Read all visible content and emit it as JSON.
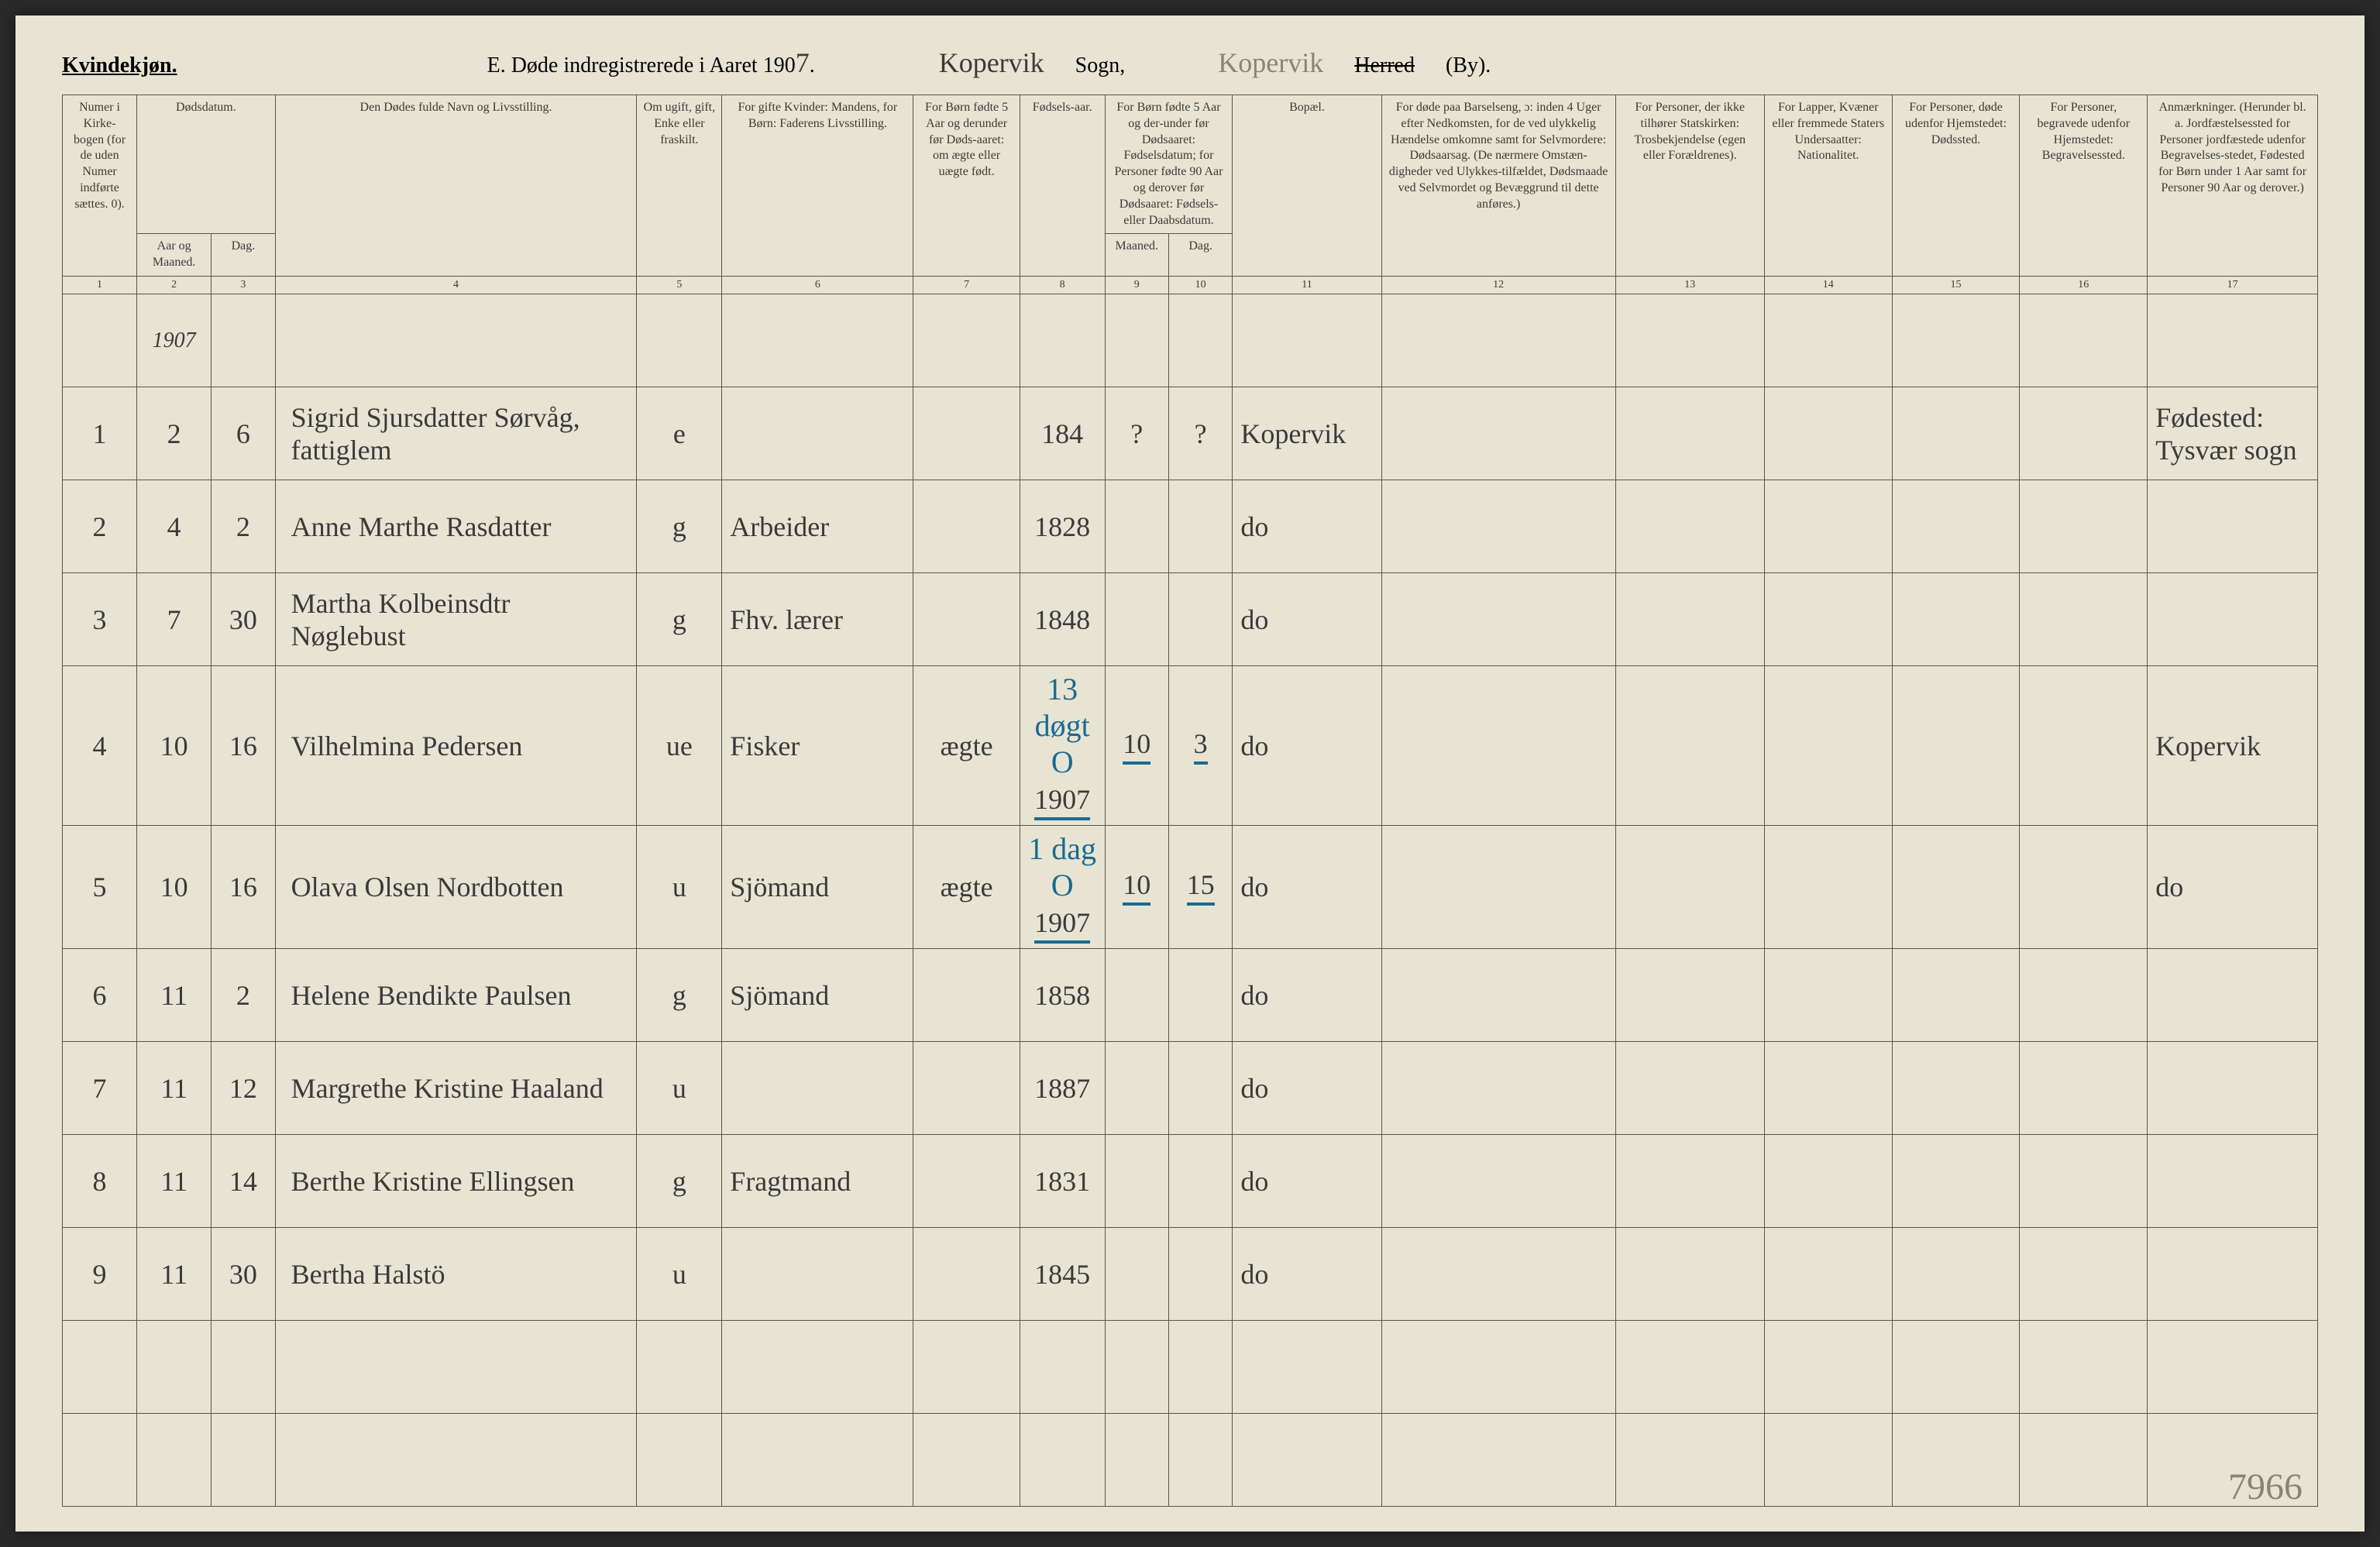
{
  "header": {
    "gender_label": "Kvindekjøn.",
    "title_prefix": "E.  Døde indregistrerede i Aaret 190",
    "year_suffix": "7",
    "title_suffix": ".",
    "parish_value": "Kopervik",
    "parish_label": "Sogn,",
    "district_value": "Kopervik",
    "herred_label": "Herred",
    "by_label": "(By)."
  },
  "columns": {
    "c1": "Numer i Kirke-bogen (for de uden Numer indførte sættes. 0).",
    "c2": "Dødsdatum.",
    "c2a": "Aar og Maaned.",
    "c2b": "Dag.",
    "c4": "Den Dødes fulde Navn og Livsstilling.",
    "c5": "Om ugift, gift, Enke eller fraskilt.",
    "c6": "For gifte Kvinder: Mandens, for Børn: Faderens Livsstilling.",
    "c7": "For Børn fødte 5 Aar og derunder før Døds-aaret: om ægte eller uægte født.",
    "c8": "Fødsels-aar.",
    "c9": "For Børn fødte 5 Aar og der-under før Dødsaaret: Fødselsdatum; for Personer fødte 90 Aar og derover før Dødsaaret: Fødsels- eller Daabsdatum.",
    "c9a": "Maaned.",
    "c9b": "Dag.",
    "c11": "Bopæl.",
    "c12": "For døde paa Barselseng, ɔ: inden 4 Uger efter Nedkomsten, for de ved ulykkelig Hændelse omkomne samt for Selvmordere: Dødsaarsag. (De nærmere Omstæn-digheder ved Ulykkes-tilfældet, Dødsmaade ved Selvmordet og Bevæggrund til dette anføres.)",
    "c13": "For Personer, der ikke tilhører Statskirken: Trosbekjendelse (egen eller Forældrenes).",
    "c14": "For Lapper, Kvæner eller fremmede Staters Undersaatter: Nationalitet.",
    "c15": "For Personer, døde udenfor Hjemstedet: Dødssted.",
    "c16": "For Personer, begravede udenfor Hjemstedet: Begravelsessted.",
    "c17": "Anmærkninger. (Herunder bl. a. Jordfæstelsessted for Personer jordfæstede udenfor Begravelses-stedet, Fødested for Børn under 1 Aar samt for Personer 90 Aar og derover.)"
  },
  "colnums": [
    "1",
    "2",
    "3",
    "4",
    "5",
    "6",
    "7",
    "8",
    "9",
    "10",
    "11",
    "12",
    "13",
    "14",
    "15",
    "16",
    "17"
  ],
  "year_row": "1907",
  "rows": [
    {
      "n": "1",
      "m": "2",
      "d": "6",
      "name": "Sigrid Sjursdatter Sørvåg, fattiglem",
      "stat": "e",
      "occ": "",
      "leg": "",
      "yr": "184",
      "mn": "?",
      "dy": "?",
      "res": "Kopervik",
      "note": "Fødested: Tysvær sogn"
    },
    {
      "n": "2",
      "m": "4",
      "d": "2",
      "name": "Anne Marthe Rasdatter",
      "stat": "g",
      "occ": "Arbeider",
      "leg": "",
      "yr": "1828",
      "mn": "",
      "dy": "",
      "res": "do",
      "note": ""
    },
    {
      "n": "3",
      "m": "7",
      "d": "30",
      "name": "Martha Kolbeinsdtr Nøglebust",
      "stat": "g",
      "occ": "Fhv. lærer",
      "leg": "",
      "yr": "1848",
      "mn": "",
      "dy": "",
      "res": "do",
      "note": ""
    },
    {
      "n": "4",
      "m": "10",
      "d": "16",
      "name": "Vilhelmina Pedersen",
      "stat": "ue",
      "occ": "Fisker",
      "leg": "ægte",
      "yr": "1907",
      "mn": "10",
      "dy": "3",
      "res": "do",
      "note": "Kopervik",
      "blue_above": "13 døgt O",
      "blue_underline": true
    },
    {
      "n": "5",
      "m": "10",
      "d": "16",
      "name": "Olava Olsen Nordbotten",
      "stat": "u",
      "occ": "Sjömand",
      "leg": "ægte",
      "yr": "1907",
      "mn": "10",
      "dy": "15",
      "res": "do",
      "note": "do",
      "blue_above": "1 dag O",
      "blue_underline": true
    },
    {
      "n": "6",
      "m": "11",
      "d": "2",
      "name": "Helene Bendikte Paulsen",
      "stat": "g",
      "occ": "Sjömand",
      "leg": "",
      "yr": "1858",
      "mn": "",
      "dy": "",
      "res": "do",
      "note": ""
    },
    {
      "n": "7",
      "m": "11",
      "d": "12",
      "name": "Margrethe Kristine Haaland",
      "stat": "u",
      "occ": "",
      "leg": "",
      "yr": "1887",
      "mn": "",
      "dy": "",
      "res": "do",
      "note": ""
    },
    {
      "n": "8",
      "m": "11",
      "d": "14",
      "name": "Berthe Kristine Ellingsen",
      "stat": "g",
      "occ": "Fragtmand",
      "leg": "",
      "yr": "1831",
      "mn": "",
      "dy": "",
      "res": "do",
      "note": ""
    },
    {
      "n": "9",
      "m": "11",
      "d": "30",
      "name": "Bertha Halstö",
      "stat": "u",
      "occ": "",
      "leg": "",
      "yr": "1845",
      "mn": "",
      "dy": "",
      "res": "do",
      "note": ""
    }
  ],
  "corner_number": "7966",
  "col_widths_pct": [
    3.5,
    3.5,
    3,
    17,
    4,
    9,
    5,
    4,
    3,
    3,
    7,
    11,
    7,
    6,
    6,
    6,
    8
  ],
  "colors": {
    "page_bg": "#e8e4d4",
    "ink": "#3a3a3a",
    "border": "#5a5548",
    "blue_ink": "#1a6b8f",
    "faded": "#8a8572"
  }
}
